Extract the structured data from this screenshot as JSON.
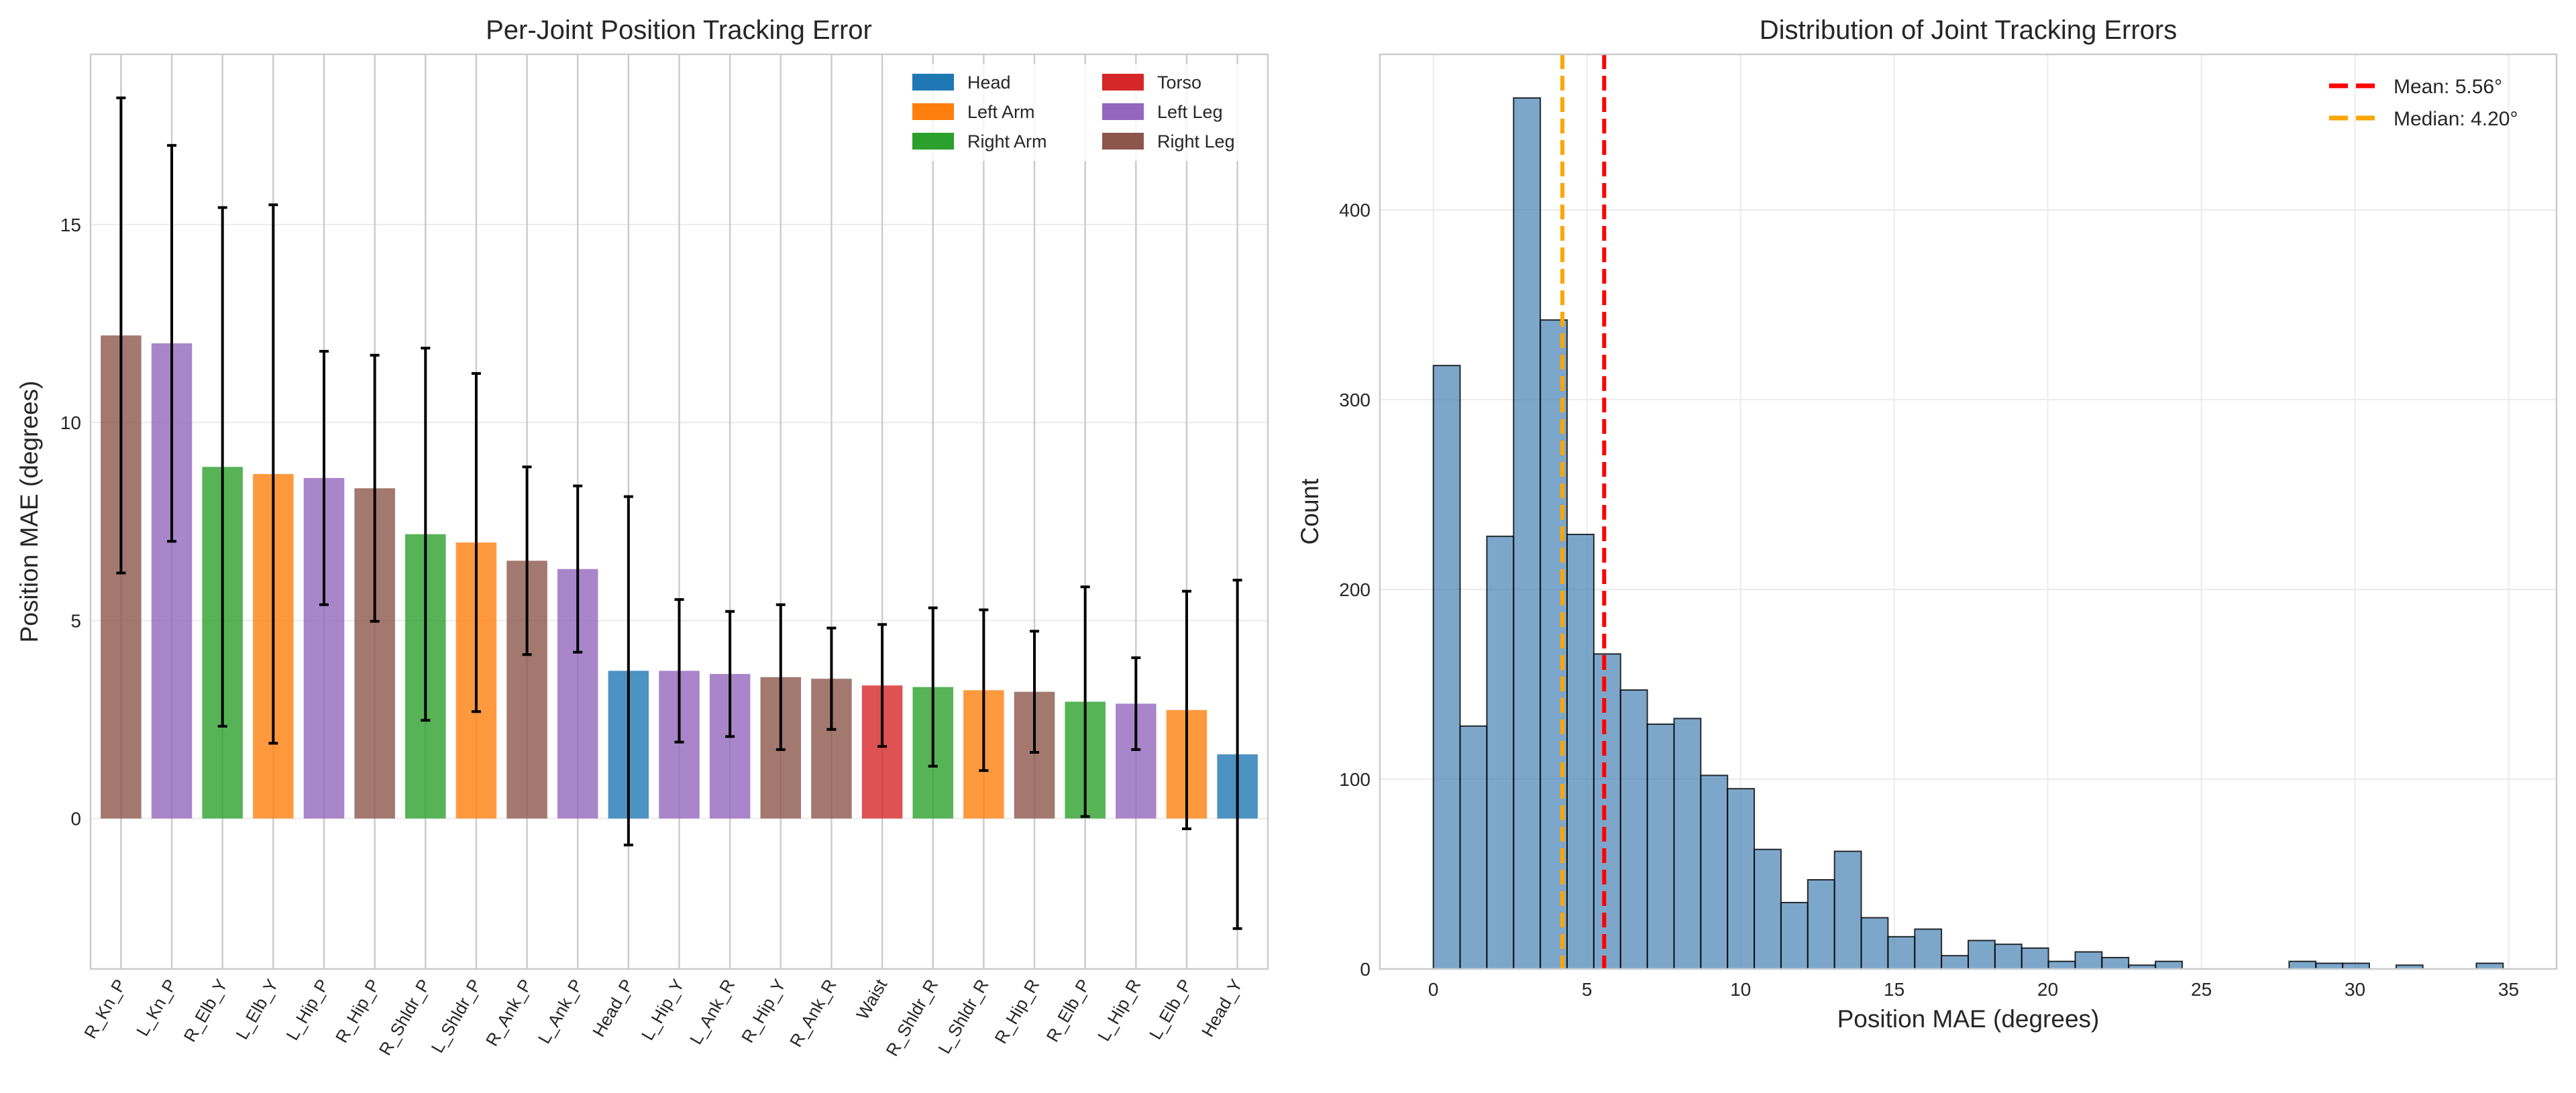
{
  "chart_data": [
    {
      "type": "bar",
      "title": "Per-Joint Position Tracking Error",
      "xlabel": "",
      "ylabel": "Position MAE (degrees)",
      "ylim": [
        -3.8,
        19.3
      ],
      "yticks": [
        0,
        5,
        10,
        15
      ],
      "grid": true,
      "legend_placement": "top-right",
      "groups": [
        {
          "name": "Head",
          "color": "#1f77b4"
        },
        {
          "name": "Left Arm",
          "color": "#ff7f0e"
        },
        {
          "name": "Right Arm",
          "color": "#2ca02c"
        },
        {
          "name": "Torso",
          "color": "#d62728"
        },
        {
          "name": "Left Leg",
          "color": "#9467bd"
        },
        {
          "name": "Right Leg",
          "color": "#8c564b"
        }
      ],
      "categories": [
        "R_Kn_P",
        "L_Kn_P",
        "R_Elb_Y",
        "L_Elb_Y",
        "L_Hip_P",
        "R_Hip_P",
        "R_Shldr_P",
        "L_Shldr_P",
        "R_Ank_P",
        "L_Ank_P",
        "Head_P",
        "L_Hip_Y",
        "L_Ank_R",
        "R_Hip_Y",
        "R_Ank_R",
        "Waist",
        "R_Shldr_R",
        "L_Shldr_R",
        "R_Hip_R",
        "R_Elb_P",
        "L_Hip_R",
        "L_Elb_P",
        "Head_Y"
      ],
      "category_groups": [
        "Right Leg",
        "Left Leg",
        "Right Arm",
        "Left Arm",
        "Left Leg",
        "Right Leg",
        "Right Arm",
        "Left Arm",
        "Right Leg",
        "Left Leg",
        "Head",
        "Left Leg",
        "Left Leg",
        "Right Leg",
        "Right Leg",
        "Torso",
        "Right Arm",
        "Left Arm",
        "Right Leg",
        "Right Arm",
        "Left Leg",
        "Left Arm",
        "Head"
      ],
      "values": [
        12.2,
        12.0,
        8.88,
        8.7,
        8.6,
        8.34,
        7.18,
        6.97,
        6.51,
        6.3,
        3.73,
        3.73,
        3.65,
        3.57,
        3.53,
        3.36,
        3.32,
        3.24,
        3.2,
        2.95,
        2.9,
        2.74,
        1.62
      ],
      "errors": [
        6.0,
        5.0,
        6.55,
        6.8,
        3.2,
        3.36,
        4.7,
        4.27,
        2.37,
        2.1,
        4.4,
        1.8,
        1.58,
        1.83,
        1.28,
        1.54,
        2.0,
        2.03,
        1.53,
        2.9,
        1.16,
        3.0,
        4.4
      ]
    },
    {
      "type": "histogram",
      "title": "Distribution of Joint Tracking Errors",
      "xlabel": "Position MAE (degrees)",
      "ylabel": "Count",
      "xlim": [
        -1.74,
        36.56
      ],
      "ylim": [
        0,
        482
      ],
      "xticks": [
        0,
        5,
        10,
        15,
        20,
        25,
        30,
        35
      ],
      "yticks": [
        0,
        100,
        200,
        300,
        400
      ],
      "grid": true,
      "legend_placement": "top-right",
      "bar_color": "#4682b4",
      "bin_start": 0,
      "bin_width": 0.8705,
      "counts": [
        318,
        128,
        228,
        459,
        342,
        229,
        166,
        147,
        129,
        132,
        102,
        95,
        63,
        35,
        47,
        62,
        27,
        17,
        21,
        7,
        15,
        13,
        11,
        4,
        9,
        6,
        2,
        4,
        0,
        0,
        0,
        0,
        4,
        3,
        3,
        0,
        2,
        0,
        0,
        3
      ],
      "reference_lines": [
        {
          "label": "Mean: 5.56°",
          "value": 5.56,
          "color": "#ff0000"
        },
        {
          "label": "Median: 4.20°",
          "value": 4.2,
          "color": "#ffa500"
        }
      ]
    }
  ]
}
